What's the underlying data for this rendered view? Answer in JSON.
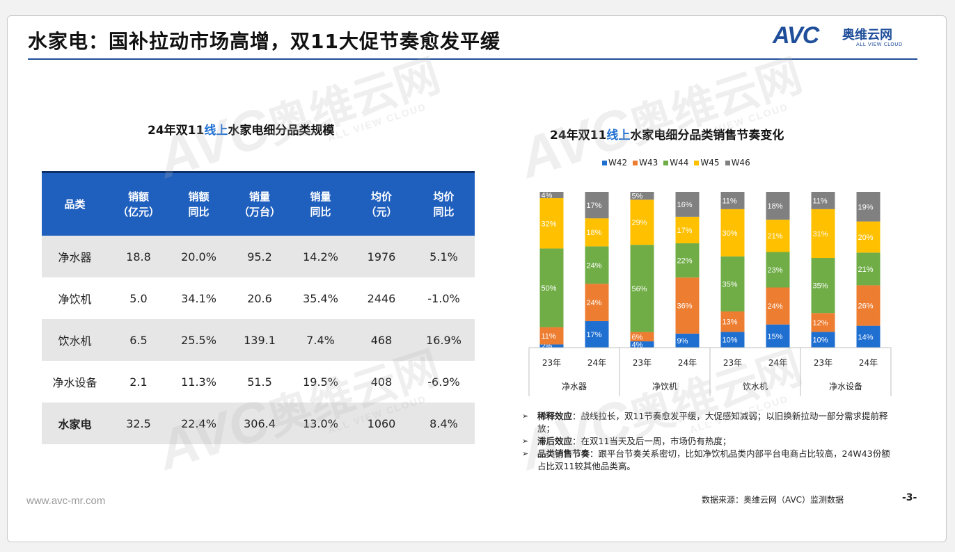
{
  "title": "水家电：国补拉动市场高增，双11大促节奏愈发平缓",
  "logo": {
    "mark": "AVC",
    "cn": "奥维云网",
    "en": "ALL VIEW CLOUD"
  },
  "watermark": {
    "mark": "AVC",
    "cn": "奥维云网",
    "en": "ALL VIEW CLOUD"
  },
  "table_title": {
    "prefix": "24年双11",
    "highlight": "线上",
    "suffix": "水家电细分品类规模"
  },
  "chart_title": {
    "prefix": "24年双11",
    "highlight": "线上",
    "suffix": "水家电细分品类销售节奏变化"
  },
  "table": {
    "headers": [
      [
        "品类",
        ""
      ],
      [
        "销额",
        "（亿元）"
      ],
      [
        "销额",
        "同比"
      ],
      [
        "销量",
        "（万台）"
      ],
      [
        "销量",
        "同比"
      ],
      [
        "均价",
        "（元）"
      ],
      [
        "均价",
        "同比"
      ]
    ],
    "rows": [
      [
        "净水器",
        "18.8",
        "20.0%",
        "95.2",
        "14.2%",
        "1976",
        "5.1%"
      ],
      [
        "净饮机",
        "5.0",
        "34.1%",
        "20.6",
        "35.4%",
        "2446",
        "-1.0%"
      ],
      [
        "饮水机",
        "6.5",
        "25.5%",
        "139.1",
        "7.4%",
        "468",
        "16.9%"
      ],
      [
        "净水设备",
        "2.1",
        "11.3%",
        "51.5",
        "19.5%",
        "408",
        "-6.9%"
      ],
      [
        "水家电",
        "32.5",
        "22.4%",
        "306.4",
        "13.0%",
        "1060",
        "8.4%"
      ]
    ]
  },
  "chart_data": {
    "type": "bar",
    "stacked": "100%",
    "groups": [
      "净水器",
      "净饮机",
      "饮水机",
      "净水设备"
    ],
    "categories": [
      "23年",
      "24年",
      "23年",
      "24年",
      "23年",
      "24年",
      "23年",
      "24年"
    ],
    "series": [
      {
        "name": "W42",
        "color": "#1f6fd1",
        "values": [
          2,
          17,
          4,
          9,
          10,
          15,
          10,
          14
        ]
      },
      {
        "name": "W43",
        "color": "#ed7d31",
        "values": [
          11,
          24,
          6,
          36,
          13,
          24,
          12,
          26
        ]
      },
      {
        "name": "W44",
        "color": "#70ad47",
        "values": [
          50,
          24,
          56,
          22,
          35,
          23,
          35,
          21
        ]
      },
      {
        "name": "W45",
        "color": "#ffc000",
        "values": [
          32,
          18,
          29,
          17,
          30,
          21,
          31,
          20
        ]
      },
      {
        "name": "W46",
        "color": "#808080",
        "values": [
          4,
          17,
          5,
          16,
          11,
          18,
          11,
          19
        ]
      }
    ],
    "labels": [
      [
        "2%",
        "17%",
        "4%",
        "9%",
        "10%",
        "15%",
        "10%",
        "14%"
      ],
      [
        "11%",
        "24%",
        "6%",
        "36%",
        "13%",
        "24%",
        "12%",
        "26%"
      ],
      [
        "50%",
        "24%",
        "56%",
        "22%",
        "35%",
        "23%",
        "35%",
        "21%"
      ],
      [
        "32%",
        "18%",
        "29%",
        "17%",
        "30%",
        "21%",
        "31%",
        "20%"
      ],
      [
        "4%",
        "17%",
        "5%",
        "16%",
        "11%",
        "18%",
        "11%",
        "19%"
      ]
    ],
    "ylim": [
      0,
      100
    ],
    "legend": "top"
  },
  "notes": [
    {
      "key": "稀释效应",
      "text": "：战线拉长，双11节奏愈发平缓，大促感知减弱；以旧换新拉动一部分需求提前释放；"
    },
    {
      "key": "滞后效应",
      "text": "：在双11当天及后一周，市场仍有热度；"
    },
    {
      "key": "品类销售节奏",
      "text": "：跟平台节奏关系密切，比如净饮机品类内部平台电商占比较高，24W43份额占比双11较其他品类高。"
    }
  ],
  "footer": {
    "url": "www.avc-mr.com",
    "source": "数据来源：奥维云网（AVC）监测数据",
    "page": "-3-"
  }
}
